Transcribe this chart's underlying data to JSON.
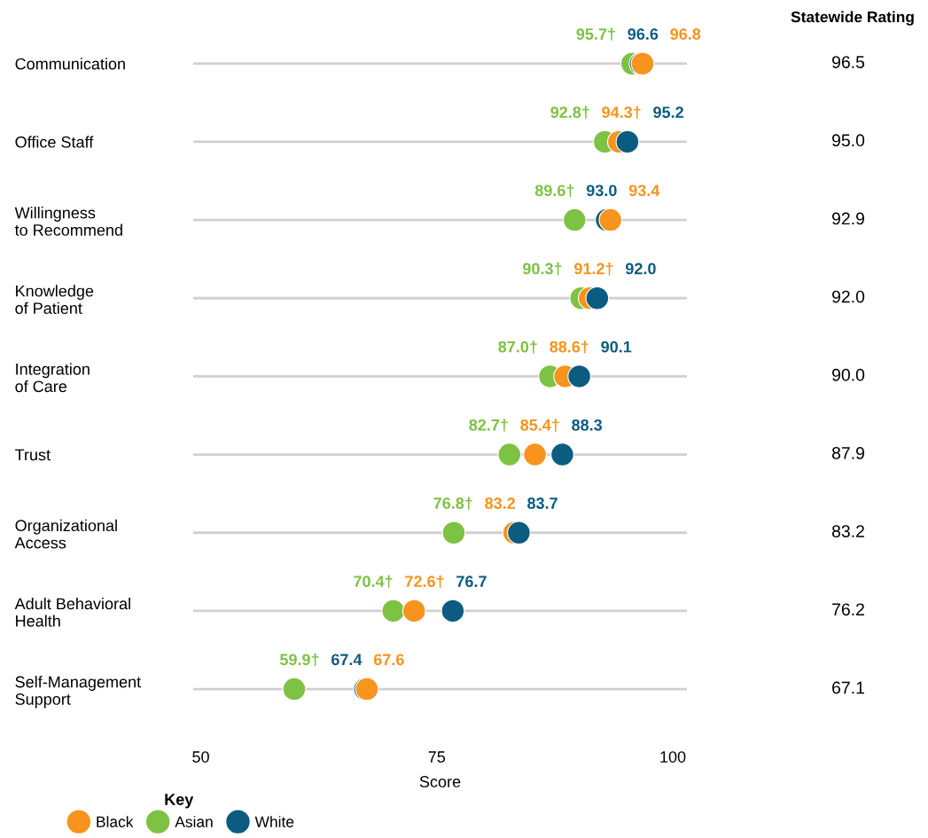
{
  "chart_data": {
    "type": "scatter",
    "categories": [
      "Communication",
      "Office Staff",
      "Willingness\nto Recommend",
      "Knowledge\nof Patient",
      "Integration\nof Care",
      "Trust",
      "Organizational\nAccess",
      "Adult Behavioral\nHealth",
      "Self-Management\nSupport"
    ],
    "orientation": "horizontal",
    "xlabel": "Score",
    "xlim": [
      49.2,
      101.5
    ],
    "xticks": [
      50,
      75,
      100
    ],
    "grid": "y",
    "marker": "circle",
    "legend": "bottom left",
    "legend_title": "Key",
    "series": [
      {
        "name": "Black",
        "color": "#f7941d",
        "values": [
          96.8,
          94.3,
          93.4,
          91.2,
          88.6,
          85.4,
          83.2,
          72.6,
          67.6
        ],
        "value_labels": [
          "96.8",
          "94.3†",
          "93.4",
          "91.2†",
          "88.6†",
          "85.4†",
          "83.2",
          "72.6†",
          "67.6"
        ]
      },
      {
        "name": "Asian",
        "color": "#7dc242",
        "values": [
          95.7,
          92.8,
          89.6,
          90.3,
          87.0,
          82.7,
          76.8,
          70.4,
          59.9
        ],
        "value_labels": [
          "95.7†",
          "92.8†",
          "89.6†",
          "90.3†",
          "87.0†",
          "82.7†",
          "76.8†",
          "70.4†",
          "59.9†"
        ]
      },
      {
        "name": "White",
        "color": "#0b5c80",
        "values": [
          96.6,
          95.2,
          93.0,
          92.0,
          90.1,
          88.3,
          83.7,
          76.7,
          67.4
        ],
        "value_labels": [
          "96.6",
          "95.2",
          "93.0",
          "92.0",
          "90.1",
          "88.3",
          "83.7",
          "76.7",
          "67.4"
        ]
      }
    ],
    "annotations": [
      "Statewide Rating",
      "96.5",
      "95.0",
      "92.9",
      "92.0",
      "90.0",
      "87.9",
      "83.2",
      "76.2",
      "67.1"
    ]
  }
}
